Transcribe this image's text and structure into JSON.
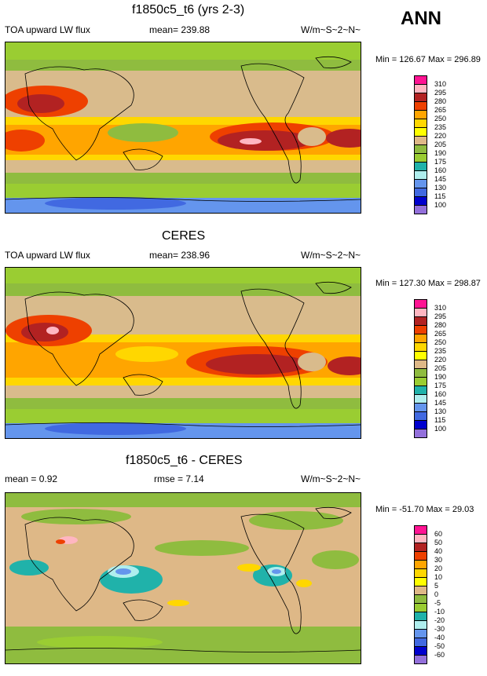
{
  "annotation": "ANN",
  "panels": [
    {
      "title": "f1850c5_t6 (yrs 2-3)",
      "left_label": "TOA upward LW flux",
      "center_label": "mean= 239.88",
      "units": "W/m~S~2~N~",
      "minmax": "Min = 126.67 Max = 296.89",
      "colorbar": {
        "ticks": [
          "310",
          "295",
          "280",
          "265",
          "250",
          "235",
          "220",
          "205",
          "190",
          "175",
          "160",
          "145",
          "130",
          "115",
          "100"
        ],
        "colors": [
          "#ff1493",
          "#ffb6c1",
          "#b22222",
          "#ee4000",
          "#ffa500",
          "#ffd700",
          "#ffff00",
          "#deb887",
          "#8fbc3f",
          "#9acd32",
          "#20b2aa",
          "#afeeee",
          "#6495ed",
          "#4169e1",
          "#0000cd",
          "#9370db"
        ]
      }
    },
    {
      "title": "CERES",
      "left_label": "TOA upward LW flux",
      "center_label": "mean= 238.96",
      "units": "W/m~S~2~N~",
      "minmax": "Min = 127.30 Max = 298.87",
      "colorbar": {
        "ticks": [
          "310",
          "295",
          "280",
          "265",
          "250",
          "235",
          "220",
          "205",
          "190",
          "175",
          "160",
          "145",
          "130",
          "115",
          "100"
        ],
        "colors": [
          "#ff1493",
          "#ffb6c1",
          "#b22222",
          "#ee4000",
          "#ffa500",
          "#ffd700",
          "#ffff00",
          "#deb887",
          "#8fbc3f",
          "#9acd32",
          "#20b2aa",
          "#afeeee",
          "#6495ed",
          "#4169e1",
          "#0000cd",
          "#9370db"
        ]
      }
    },
    {
      "title": "f1850c5_t6 - CERES",
      "left_label": "mean =   0.92",
      "center_label": "rmse =    7.14",
      "units": "W/m~S~2~N~",
      "minmax": "Min = -51.70 Max =  29.03",
      "colorbar": {
        "ticks": [
          "60",
          "50",
          "40",
          "30",
          "20",
          "10",
          "5",
          "0",
          "-5",
          "-10",
          "-20",
          "-30",
          "-40",
          "-50",
          "-60"
        ],
        "colors": [
          "#ff1493",
          "#ffb6c1",
          "#b22222",
          "#ee4000",
          "#ffa500",
          "#ffd700",
          "#ffff00",
          "#deb887",
          "#8fbc3f",
          "#9acd32",
          "#20b2aa",
          "#afeeee",
          "#6495ed",
          "#4169e1",
          "#0000cd",
          "#9370db"
        ]
      }
    }
  ],
  "chart_data": [
    {
      "type": "heatmap",
      "title": "f1850c5_t6 (yrs 2-3)",
      "variable": "TOA upward LW flux",
      "mean": 239.88,
      "min": 126.67,
      "max": 296.89,
      "units": "W/m~S~2~N~",
      "levels": [
        100,
        115,
        130,
        145,
        160,
        175,
        190,
        205,
        220,
        235,
        250,
        265,
        280,
        295,
        310
      ]
    },
    {
      "type": "heatmap",
      "title": "CERES",
      "variable": "TOA upward LW flux",
      "mean": 238.96,
      "min": 127.3,
      "max": 298.87,
      "units": "W/m~S~2~N~",
      "levels": [
        100,
        115,
        130,
        145,
        160,
        175,
        190,
        205,
        220,
        235,
        250,
        265,
        280,
        295,
        310
      ]
    },
    {
      "type": "heatmap",
      "title": "f1850c5_t6 - CERES",
      "mean": 0.92,
      "rmse": 7.14,
      "min": -51.7,
      "max": 29.03,
      "units": "W/m~S~2~N~",
      "levels": [
        -60,
        -50,
        -40,
        -30,
        -20,
        -10,
        -5,
        0,
        5,
        10,
        20,
        30,
        40,
        50,
        60
      ]
    }
  ]
}
